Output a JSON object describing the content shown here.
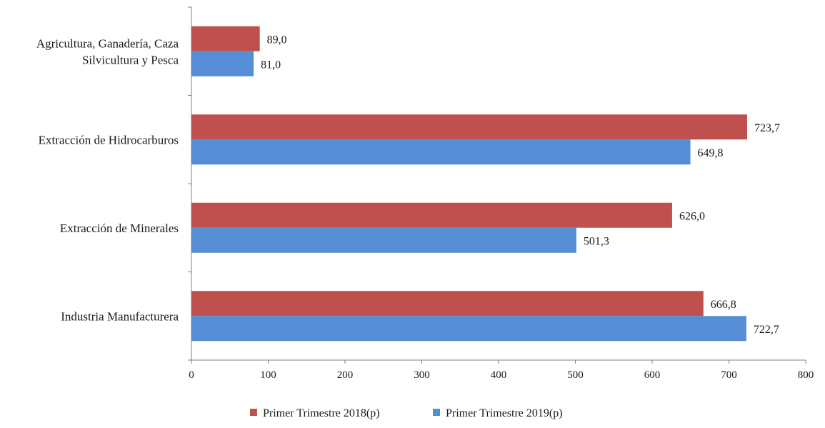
{
  "chart_data": {
    "type": "bar",
    "orientation": "horizontal",
    "categories": [
      [
        "Agricultura, Ganadería, Caza",
        "Silvicultura y Pesca"
      ],
      [
        "Extracción de Hidrocarburos"
      ],
      [
        "Extracción de Minerales"
      ],
      [
        "Industria Manufacturera"
      ]
    ],
    "series": [
      {
        "name": "Primer Trimestre 2018(p)",
        "color": "#c0504d",
        "values": [
          89.0,
          723.7,
          626.0,
          666.8
        ],
        "labels": [
          "89,0",
          "723,7",
          "626,0",
          "666,8"
        ]
      },
      {
        "name": "Primer Trimestre 2019(p)",
        "color": "#558ed5",
        "values": [
          81.0,
          649.8,
          501.3,
          722.7
        ],
        "labels": [
          "81,0",
          "649,8",
          "501,3",
          "722,7"
        ]
      }
    ],
    "xlim": [
      0,
      800
    ],
    "xticks": [
      0,
      100,
      200,
      300,
      400,
      500,
      600,
      700,
      800
    ],
    "title": "",
    "xlabel": "",
    "ylabel": "",
    "grid": false,
    "legend_position": "bottom-center"
  }
}
